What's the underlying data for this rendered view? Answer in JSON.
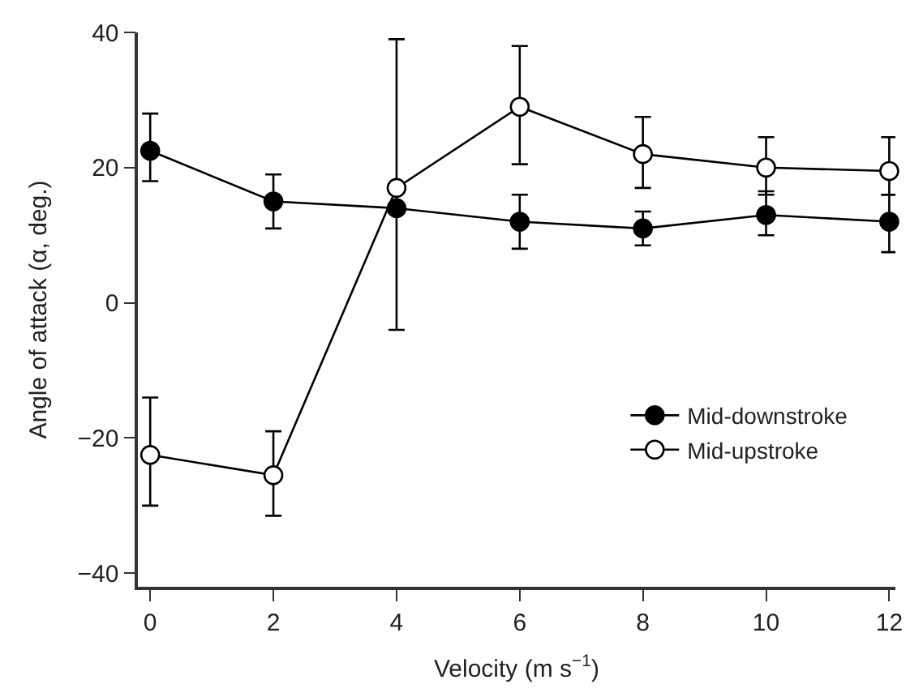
{
  "chart_data": {
    "type": "line",
    "xlabel": "Velocity (m s$^{−1}$)",
    "ylabel": "Angle of attack (α, deg.)",
    "x": [
      0,
      2,
      4,
      6,
      8,
      10,
      12
    ],
    "series": [
      {
        "name": "Mid-downstroke",
        "color": "#000000",
        "values": [
          22.5,
          15,
          14,
          12,
          11,
          13,
          12
        ],
        "errors": [
          [
            18,
            28
          ],
          [
            11,
            19
          ],
          null,
          [
            8,
            16
          ],
          [
            8.5,
            13.5
          ],
          [
            10,
            16.5
          ],
          [
            7.5,
            16
          ]
        ]
      },
      {
        "name": "Mid-upstroke",
        "color": "#000000",
        "values": [
          -22.5,
          -25.5,
          17,
          29,
          22,
          20,
          19.5
        ],
        "errors": [
          [
            -30,
            -14
          ],
          [
            -31.5,
            -19
          ],
          [
            -4,
            39
          ],
          [
            20.5,
            38
          ],
          [
            17,
            27.5
          ],
          [
            16,
            24.5
          ],
          [
            16,
            24.5
          ]
        ]
      }
    ],
    "xlim": [
      -0.2,
      12.1
    ],
    "ylim": [
      -42,
      40
    ],
    "xticks": [
      0,
      2,
      4,
      6,
      8,
      10,
      12
    ],
    "yticks": [
      -40,
      -20,
      0,
      20,
      40
    ],
    "legend": "bottom right",
    "marker": "circle",
    "line_style": "solid"
  }
}
